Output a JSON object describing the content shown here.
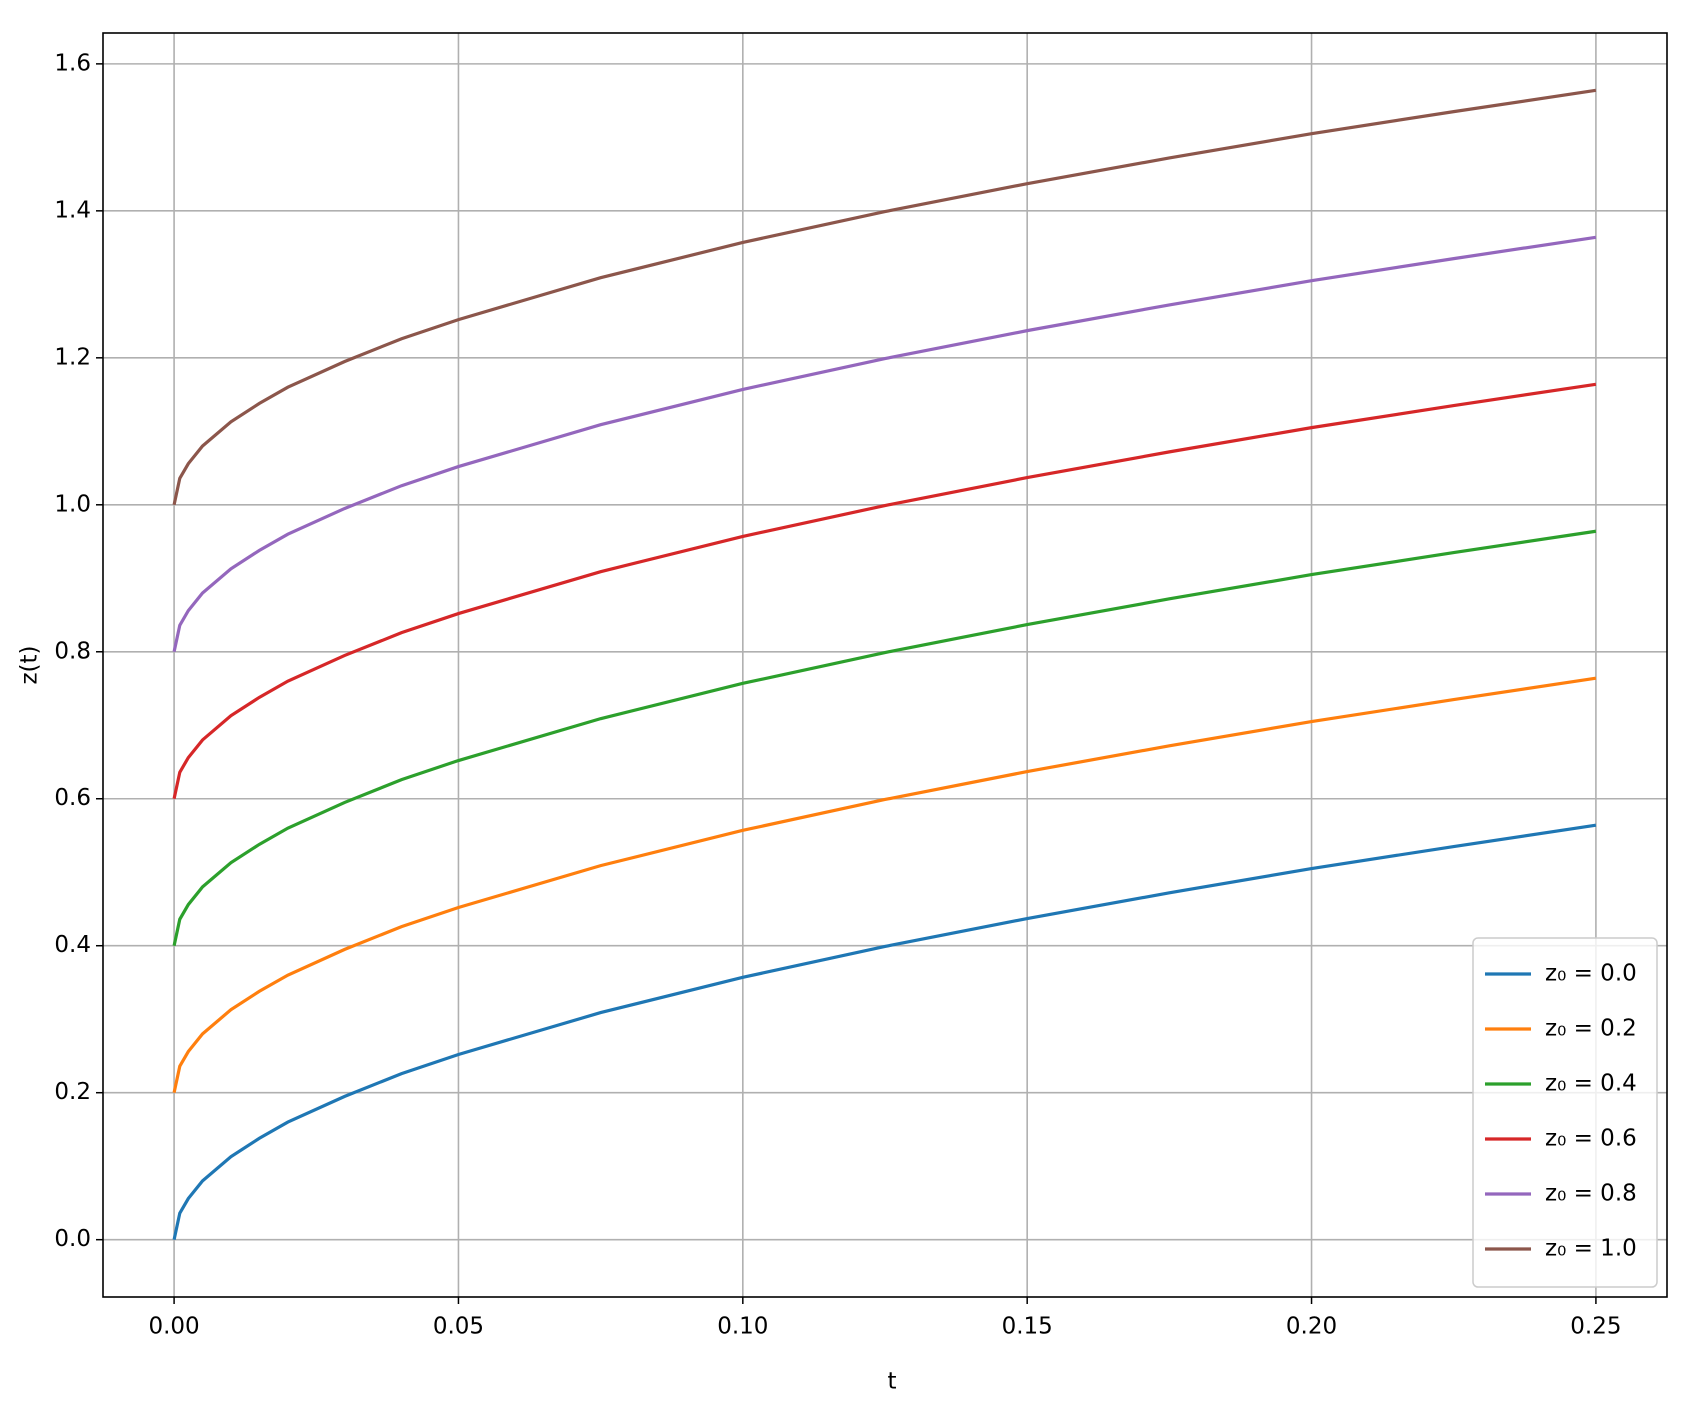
{
  "chart_data": {
    "type": "line",
    "x_label": "t",
    "y_label": "z(t)",
    "x": [
      0,
      0.001,
      0.0025,
      0.005,
      0.01,
      0.015,
      0.02,
      0.03,
      0.04,
      0.05,
      0.075,
      0.1,
      0.125,
      0.15,
      0.175,
      0.2,
      0.225,
      0.25
    ],
    "series": [
      {
        "name": "z₀ = 0.0",
        "color": "#1f77b4",
        "values": [
          0,
          0.036,
          0.056,
          0.08,
          0.113,
          0.138,
          0.16,
          0.195,
          0.226,
          0.252,
          0.309,
          0.357,
          0.399,
          0.437,
          0.472,
          0.505,
          0.535,
          0.564
        ]
      },
      {
        "name": "z₀ = 0.2",
        "color": "#ff7f0e",
        "values": [
          0.2,
          0.236,
          0.256,
          0.28,
          0.313,
          0.338,
          0.36,
          0.395,
          0.426,
          0.452,
          0.509,
          0.557,
          0.599,
          0.637,
          0.672,
          0.705,
          0.735,
          0.764
        ]
      },
      {
        "name": "z₀ = 0.4",
        "color": "#2ca02c",
        "values": [
          0.4,
          0.436,
          0.456,
          0.48,
          0.513,
          0.538,
          0.56,
          0.595,
          0.626,
          0.652,
          0.709,
          0.757,
          0.799,
          0.837,
          0.872,
          0.905,
          0.935,
          0.964
        ]
      },
      {
        "name": "z₀ = 0.6",
        "color": "#d62728",
        "values": [
          0.6,
          0.636,
          0.656,
          0.68,
          0.713,
          0.738,
          0.76,
          0.795,
          0.826,
          0.852,
          0.909,
          0.957,
          0.999,
          1.037,
          1.072,
          1.105,
          1.135,
          1.164
        ]
      },
      {
        "name": "z₀ = 0.8",
        "color": "#9467bd",
        "values": [
          0.8,
          0.836,
          0.856,
          0.88,
          0.913,
          0.938,
          0.96,
          0.995,
          1.026,
          1.052,
          1.109,
          1.157,
          1.199,
          1.237,
          1.272,
          1.305,
          1.335,
          1.364
        ]
      },
      {
        "name": "z₀ = 1.0",
        "color": "#8c564b",
        "values": [
          1.0,
          1.036,
          1.056,
          1.08,
          1.113,
          1.138,
          1.16,
          1.195,
          1.226,
          1.252,
          1.309,
          1.357,
          1.399,
          1.437,
          1.472,
          1.505,
          1.535,
          1.564
        ]
      }
    ],
    "xlim": [
      -0.0125,
      0.2625
    ],
    "xticks": [
      {
        "value": 0,
        "label": "0.00"
      },
      0.05,
      {
        "value": 0.1,
        "label": "0.10"
      },
      0.15,
      {
        "value": 0.2,
        "label": "0.20"
      },
      0.25
    ],
    "ylim": [
      -0.078,
      1.642
    ],
    "yticks": [
      {
        "value": 0,
        "label": "0.0"
      },
      0.2,
      0.4,
      0.6,
      0.8,
      {
        "value": 1,
        "label": "1.0"
      },
      1.2,
      1.4,
      1.6
    ],
    "grid": true,
    "legend": "lower right"
  }
}
